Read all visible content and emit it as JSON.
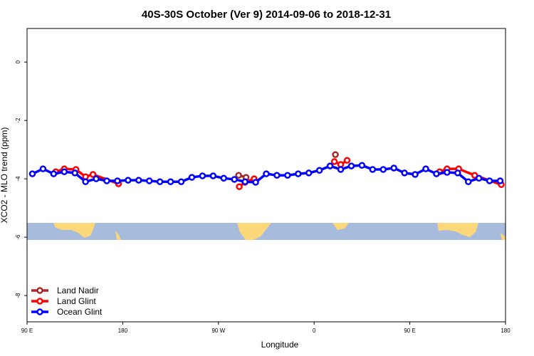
{
  "chart_data": {
    "type": "line",
    "title": "40S-30S October (Ver 9)   2014-09-06 to 2018-12-31",
    "x_label": "Longitude",
    "y_label": "XCO2 - MLO trend (ppm)",
    "xlim": [
      90,
      540
    ],
    "ylim": [
      -8.9,
      1.15
    ],
    "xticks": [
      {
        "value": 90,
        "label": "90 E"
      },
      {
        "value": 180,
        "label": "180"
      },
      {
        "value": 270,
        "label": "90 W"
      },
      {
        "value": 360,
        "label": "0"
      },
      {
        "value": 450,
        "label": "90 E"
      },
      {
        "value": 540,
        "label": "180"
      }
    ],
    "yticks": [
      0,
      -2,
      -4,
      -6,
      -8
    ],
    "legend": "bottom-left",
    "series": [
      {
        "name": "Land Nadir",
        "color": "#a52a2a",
        "x": [
          289,
          296,
          null,
          380
        ],
        "values": [
          -3.88,
          -3.95,
          null,
          -3.17
        ]
      },
      {
        "name": "Land Glint",
        "color": "#ff0000",
        "x": [
          117,
          125,
          136,
          145,
          152,
          176,
          null,
          289.6,
          295,
          303.6,
          null,
          379,
          385,
          391,
          null,
          478,
          485,
          496,
          511,
          536
        ],
        "values": [
          -3.76,
          -3.66,
          -3.68,
          -3.93,
          -3.85,
          -4.17,
          null,
          -4.27,
          -4.12,
          -4.0,
          null,
          -3.41,
          -3.51,
          -3.37,
          null,
          -3.76,
          -3.66,
          -3.66,
          -3.88,
          -4.2
        ]
      },
      {
        "name": "Ocean Glint",
        "color": "#0000ff",
        "x": [
          95,
          105,
          115,
          125,
          135,
          145,
          155,
          165,
          175,
          185,
          195,
          205,
          215,
          225,
          235,
          245,
          255,
          265,
          275,
          285,
          295,
          305,
          315,
          325,
          335,
          345,
          355,
          365,
          375,
          385,
          395,
          405,
          415,
          425,
          435,
          445,
          455,
          465,
          475,
          485,
          495,
          505,
          515,
          525,
          535
        ],
        "values": [
          -3.83,
          -3.66,
          -3.83,
          -3.76,
          -3.8,
          -4.1,
          -4.0,
          -4.07,
          -4.07,
          -4.05,
          -4.05,
          -4.07,
          -4.1,
          -4.1,
          -4.1,
          -3.95,
          -3.9,
          -3.9,
          -3.98,
          -4.02,
          -4.1,
          -4.12,
          -3.83,
          -3.88,
          -3.88,
          -3.83,
          -3.8,
          -3.71,
          -3.56,
          -3.68,
          -3.56,
          -3.54,
          -3.68,
          -3.68,
          -3.63,
          -3.8,
          -3.85,
          -3.66,
          -3.83,
          -3.78,
          -3.8,
          -4.1,
          -3.98,
          -4.07,
          -4.07
        ]
      }
    ]
  }
}
